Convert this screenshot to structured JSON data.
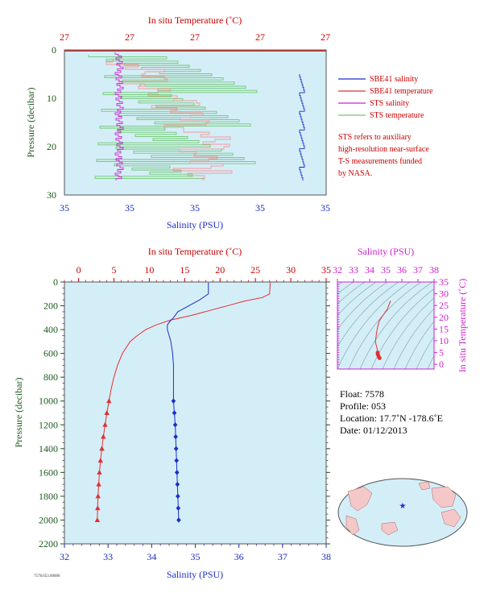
{
  "colors": {
    "plot_bg": "#d4eef8",
    "salinity": "#1a2ec8",
    "temperature": "#e03030",
    "sts_salinity": "#cc22cc",
    "sts_temperature": "#6cc86c",
    "pressure_axis": "#1a5a1a",
    "top_axis": "#cc0000",
    "ts_axis": "#cc22cc"
  },
  "chart_data": [
    {
      "type": "line",
      "name": "near-surface profile",
      "title": "",
      "top_axis_label": "In situ Temperature (˚C)",
      "top_tick_labels": [
        "27",
        "27",
        "27",
        "27",
        "27"
      ],
      "bottom_axis_label": "Salinity (PSU)",
      "bottom_tick_labels": [
        "35",
        "35",
        "35",
        "35",
        "35"
      ],
      "ylabel": "Pressure (decibar)",
      "ylim": [
        0,
        30
      ],
      "y_ticks": [
        0,
        10,
        20,
        30
      ],
      "legend": {
        "placement": "right",
        "items": [
          "SBE41 salinity",
          "SBE41 temperature",
          "STS salinity",
          "STS temperature"
        ],
        "note_lines": [
          "STS refers to auxiliary",
          "high-resolution near-surface",
          "T-S measurements funded",
          "by NASA."
        ]
      }
    },
    {
      "type": "line",
      "name": "full-depth profile",
      "title": "",
      "top_axis_label": "In situ Temperature (˚C)",
      "top_tick_labels": [
        "0",
        "5",
        "10",
        "15",
        "20",
        "25",
        "30",
        "35"
      ],
      "bottom_axis_label": "Salinity (PSU)",
      "bottom_tick_labels": [
        "32",
        "33",
        "34",
        "35",
        "36",
        "37",
        "38"
      ],
      "ylabel": "Pressure (decibar)",
      "y_tick_labels": [
        "0",
        "200",
        "400",
        "600",
        "800",
        "1000",
        "1200",
        "1400",
        "1600",
        "1800",
        "2000",
        "2200"
      ],
      "ylim": [
        2200,
        0
      ],
      "xlim_temperature": [
        -2,
        35
      ],
      "xlim_salinity": [
        32,
        38
      ],
      "series": [
        {
          "name": "temperature",
          "pressure": [
            5,
            100,
            130,
            160,
            200,
            240,
            280,
            320,
            360,
            400,
            450,
            500,
            600,
            700,
            800,
            900,
            1000,
            1100,
            1200,
            1300,
            1400,
            1500,
            1600,
            1700,
            1800,
            1900,
            2000
          ],
          "values": [
            27.1,
            27.0,
            26.0,
            23.5,
            21.0,
            18.5,
            16.0,
            13.0,
            11.0,
            9.5,
            8.3,
            7.3,
            6.2,
            5.5,
            5.0,
            4.6,
            4.3,
            4.0,
            3.75,
            3.5,
            3.3,
            3.1,
            2.95,
            2.85,
            2.75,
            2.7,
            2.65
          ]
        },
        {
          "name": "salinity",
          "pressure": [
            5,
            100,
            150,
            200,
            250,
            300,
            330,
            360,
            400,
            450,
            500,
            600,
            700,
            800,
            900,
            1000,
            1100,
            1200,
            1300,
            1400,
            1500,
            1600,
            1700,
            1800,
            1900,
            2000
          ],
          "values": [
            35.3,
            35.3,
            35.1,
            34.85,
            34.6,
            34.5,
            34.42,
            34.36,
            34.36,
            34.4,
            34.44,
            34.48,
            34.5,
            34.5,
            34.5,
            34.5,
            34.52,
            34.54,
            34.55,
            34.56,
            34.57,
            34.58,
            34.59,
            34.6,
            34.61,
            34.62
          ]
        }
      ]
    },
    {
      "type": "line",
      "name": "T-S diagram",
      "title": "",
      "top_axis_label": "Salinity (PSU)",
      "top_tick_labels": [
        "32",
        "33",
        "34",
        "35",
        "36",
        "37",
        "38"
      ],
      "right_axis_label": "In situ Temperature (˚C)",
      "right_tick_labels": [
        "0",
        "5",
        "10",
        "15",
        "20",
        "25",
        "30",
        "35"
      ],
      "xlim": [
        32,
        38
      ],
      "ylim": [
        -2,
        35
      ],
      "series": [
        {
          "name": "T-S",
          "salinity": [
            34.62,
            34.58,
            34.54,
            34.5,
            34.5,
            34.48,
            34.44,
            34.4,
            34.36,
            34.42,
            34.5,
            34.6,
            34.85,
            35.1,
            35.3
          ],
          "temperature": [
            2.65,
            2.95,
            3.75,
            4.3,
            5.0,
            6.2,
            7.3,
            8.3,
            9.5,
            13.0,
            16.0,
            18.5,
            21.0,
            23.5,
            27.0
          ]
        }
      ]
    }
  ],
  "info": {
    "float": "Float:  7578",
    "profile": "Profile:  053",
    "location": "Location:  17.7˚N  -178.6˚E",
    "date": "Date:  01/12/2013"
  },
  "footer_id": "7578.053.00000"
}
